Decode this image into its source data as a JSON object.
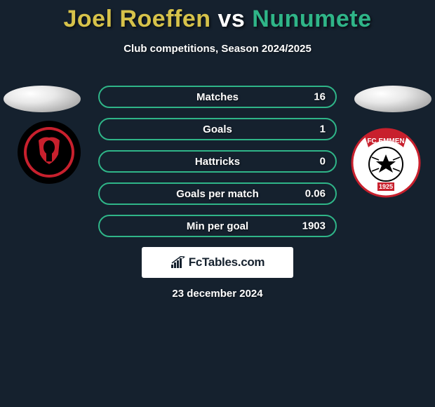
{
  "header": {
    "title_player1": "Joel Roeffen",
    "title_vs": " vs ",
    "title_player2": "Nunumete",
    "title_color_player1": "#d6c24a",
    "title_color_vs": "#ffffff",
    "title_color_player2": "#2fb588",
    "subtitle": "Club competitions, Season 2024/2025"
  },
  "accent_color": "#2fb588",
  "background_color": "#15212e",
  "stats": [
    {
      "label": "Matches",
      "value_right": "16"
    },
    {
      "label": "Goals",
      "value_right": "1"
    },
    {
      "label": "Hattricks",
      "value_right": "0"
    },
    {
      "label": "Goals per match",
      "value_right": "0.06"
    },
    {
      "label": "Min per goal",
      "value_right": "1903"
    }
  ],
  "branding": {
    "text": "FcTables.com",
    "icon": "chart-bars-icon"
  },
  "date": "23 december 2024",
  "club_left": {
    "name": "helmond-sport-logo",
    "outer_color": "#000000",
    "inner_color": "#c8202d"
  },
  "club_right": {
    "name": "fc-emmen-logo",
    "outer_color": "#ffffff",
    "accent_color": "#c8202d",
    "text_top": "FC EMMEN",
    "text_year": "1925"
  }
}
